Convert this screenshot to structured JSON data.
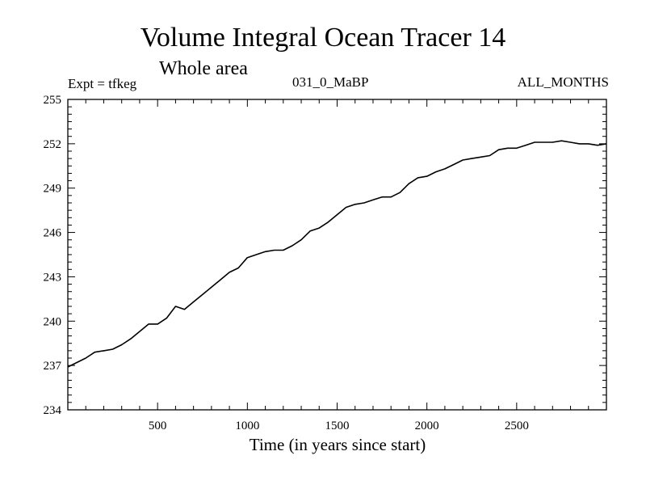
{
  "chart_data": {
    "type": "line",
    "title": "Volume Integral Ocean Tracer 14",
    "subtitle": "Whole area",
    "annotations": {
      "left": "Expt = tfkeg",
      "center": "031_0_MaBP",
      "right": "ALL_MONTHS"
    },
    "xlabel": "Time (in years since start)",
    "ylabel": "",
    "xlim": [
      0,
      3000
    ],
    "ylim": [
      234,
      255
    ],
    "xticks": [
      500,
      1000,
      1500,
      2000,
      2500
    ],
    "yticks": [
      234,
      237,
      240,
      243,
      246,
      249,
      252,
      255
    ],
    "grid": false,
    "series": [
      {
        "color": "#000000",
        "x": [
          0,
          50,
          100,
          150,
          200,
          250,
          300,
          350,
          400,
          450,
          500,
          550,
          600,
          650,
          700,
          750,
          800,
          850,
          900,
          950,
          1000,
          1050,
          1100,
          1150,
          1200,
          1250,
          1300,
          1350,
          1400,
          1450,
          1500,
          1550,
          1600,
          1650,
          1700,
          1750,
          1800,
          1850,
          1900,
          1950,
          2000,
          2050,
          2100,
          2150,
          2200,
          2250,
          2300,
          2350,
          2400,
          2450,
          2500,
          2550,
          2600,
          2650,
          2700,
          2750,
          2800,
          2850,
          2900,
          2950,
          3000
        ],
        "y": [
          236.9,
          237.2,
          237.5,
          237.9,
          238.0,
          238.1,
          238.4,
          238.8,
          239.3,
          239.8,
          239.8,
          240.2,
          241.0,
          240.8,
          241.3,
          241.8,
          242.3,
          242.8,
          243.3,
          243.6,
          244.3,
          244.5,
          244.7,
          244.8,
          244.8,
          245.1,
          245.5,
          246.1,
          246.3,
          246.7,
          247.2,
          247.7,
          247.9,
          248.0,
          248.2,
          248.4,
          248.4,
          248.7,
          249.3,
          249.7,
          249.8,
          250.1,
          250.3,
          250.6,
          250.9,
          251.0,
          251.1,
          251.2,
          251.6,
          251.7,
          251.7,
          251.9,
          252.1,
          252.1,
          252.1,
          252.2,
          252.1,
          252.0,
          252.0,
          251.9,
          252.0
        ]
      }
    ]
  }
}
